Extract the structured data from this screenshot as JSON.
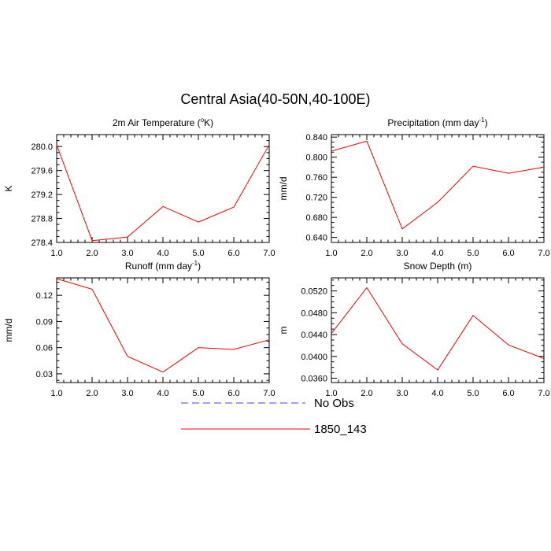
{
  "figure": {
    "title": "Central Asia(40-50N,40-100E)"
  },
  "colors": {
    "model": "#ff0000",
    "obs": "#4040ff",
    "axis": "#000000"
  },
  "legend": {
    "placement": "bottom-center",
    "items": [
      {
        "label": "No Obs",
        "style": "dashed",
        "color": "#4040ff"
      },
      {
        "label": "1850_143",
        "style": "solid",
        "color": "#ff0000"
      }
    ]
  },
  "chart_data": [
    {
      "type": "line",
      "title": "2m Air Temperature (",
      "title_sup": "o",
      "title_suffix": "K)",
      "ylabel": "K",
      "x": [
        1,
        2,
        3,
        4,
        5,
        6,
        7
      ],
      "xticks": [
        "1.0",
        "2.0",
        "3.0",
        "4.0",
        "5.0",
        "6.0",
        "7.0"
      ],
      "xlim": [
        1,
        7
      ],
      "ylim": [
        278.4,
        280.2
      ],
      "yticks": [
        278.4,
        278.8,
        279.2,
        279.6,
        280.0
      ],
      "ytick_labels": [
        "278.4",
        "278.8",
        "279.2",
        "279.6",
        "280.0"
      ],
      "series": [
        {
          "name": "1850_143",
          "values": [
            280.03,
            278.43,
            278.49,
            279.0,
            278.74,
            278.99,
            280.03
          ]
        }
      ]
    },
    {
      "type": "line",
      "title": "Precipitation (mm day",
      "title_sup": "-1",
      "title_suffix": ")",
      "ylabel": "mm/d",
      "x": [
        1,
        2,
        3,
        4,
        5,
        6,
        7
      ],
      "xticks": [
        "1.0",
        "2.0",
        "3.0",
        "4.0",
        "5.0",
        "6.0",
        "7.0"
      ],
      "xlim": [
        1,
        7
      ],
      "ylim": [
        0.63,
        0.845
      ],
      "yticks": [
        0.64,
        0.68,
        0.72,
        0.76,
        0.8,
        0.84
      ],
      "ytick_labels": [
        "0.640",
        "0.680",
        "0.720",
        "0.760",
        "0.800",
        "0.840"
      ],
      "series": [
        {
          "name": "1850_143",
          "values": [
            0.812,
            0.832,
            0.657,
            0.71,
            0.782,
            0.768,
            0.78
          ]
        }
      ]
    },
    {
      "type": "line",
      "title": "Runoff (mm day",
      "title_sup": "-1",
      "title_suffix": ")",
      "ylabel": "mm/d",
      "x": [
        1,
        2,
        3,
        4,
        5,
        6,
        7
      ],
      "xticks": [
        "1.0",
        "2.0",
        "3.0",
        "4.0",
        "5.0",
        "6.0",
        "7.0"
      ],
      "xlim": [
        1,
        7
      ],
      "ylim": [
        0.02,
        0.14
      ],
      "yticks": [
        0.03,
        0.06,
        0.09,
        0.12
      ],
      "ytick_labels": [
        "0.03",
        "0.06",
        "0.09",
        "0.12"
      ],
      "series": [
        {
          "name": "1850_143",
          "values": [
            0.139,
            0.127,
            0.05,
            0.032,
            0.06,
            0.058,
            0.069
          ]
        }
      ]
    },
    {
      "type": "line",
      "title": "Snow Depth (m)",
      "title_sup": "",
      "title_suffix": "",
      "ylabel": "m",
      "x": [
        1,
        2,
        3,
        4,
        5,
        6,
        7
      ],
      "xticks": [
        "1.0",
        "2.0",
        "3.0",
        "4.0",
        "5.0",
        "6.0",
        "7.0"
      ],
      "xlim": [
        1,
        7
      ],
      "ylim": [
        0.0352,
        0.0544
      ],
      "yticks": [
        0.036,
        0.04,
        0.044,
        0.048,
        0.052
      ],
      "ytick_labels": [
        "0.0360",
        "0.0400",
        "0.0440",
        "0.0480",
        "0.0520"
      ],
      "series": [
        {
          "name": "1850_143",
          "values": [
            0.0442,
            0.0526,
            0.0423,
            0.0375,
            0.0475,
            0.0421,
            0.0396
          ]
        }
      ]
    }
  ]
}
